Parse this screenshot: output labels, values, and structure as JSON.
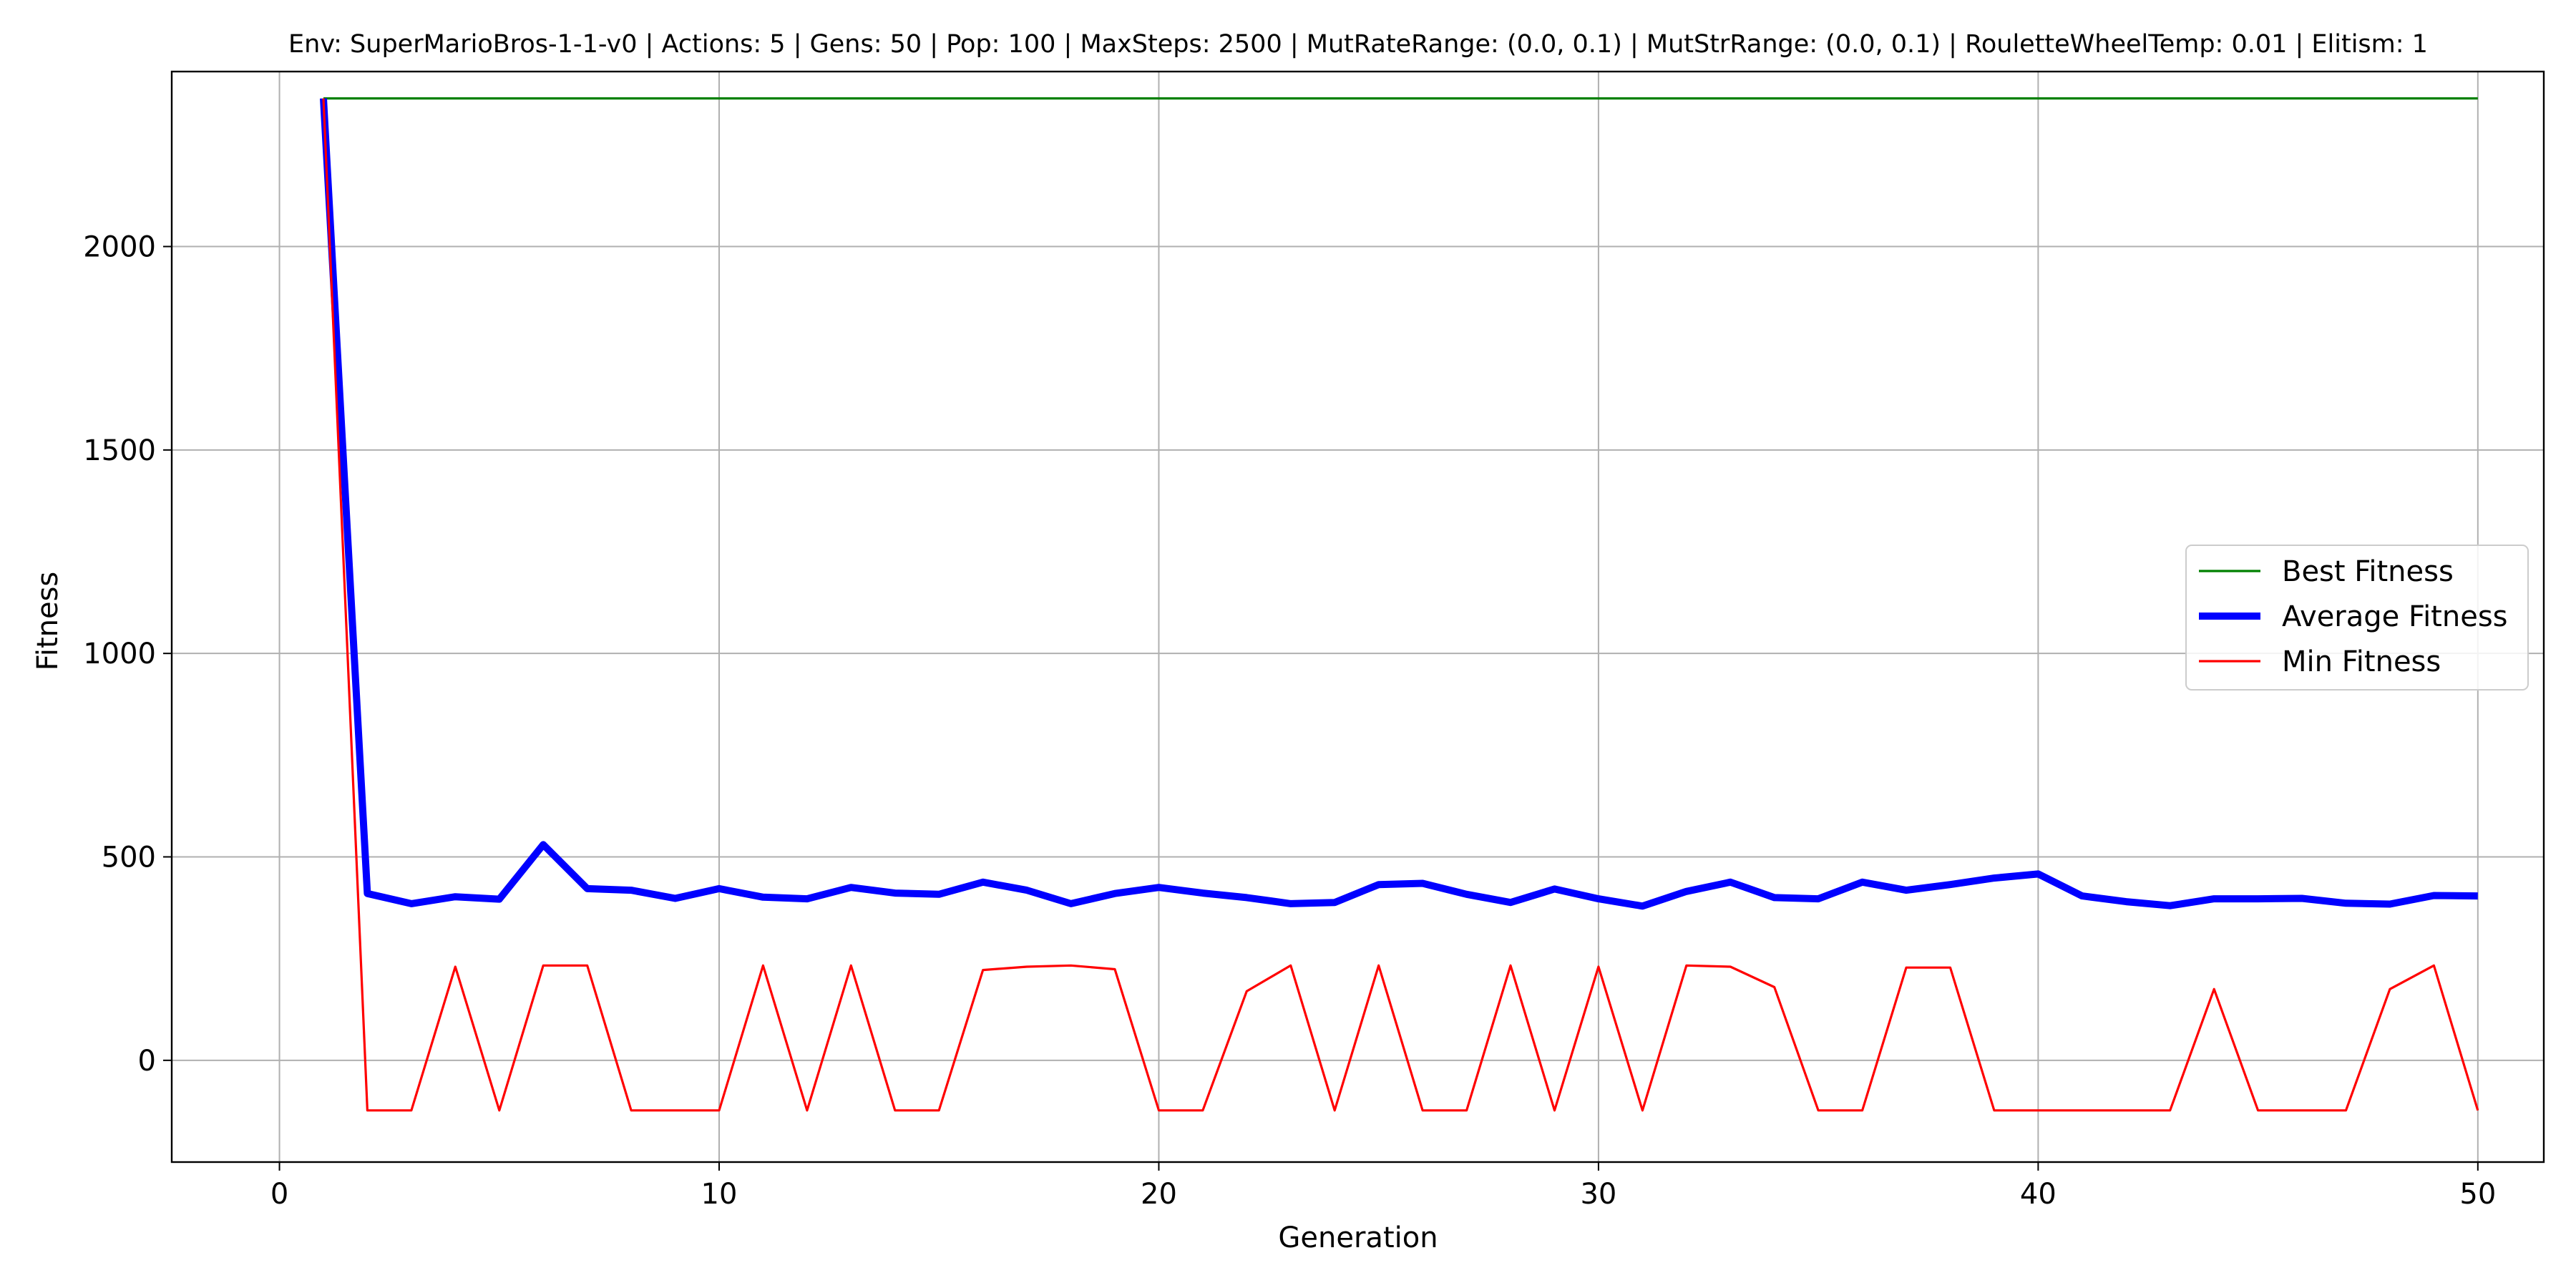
{
  "chart_data": {
    "type": "line",
    "title": "Env: SuperMarioBros-1-1-v0 | Actions: 5 | Gens: 50 | Pop: 100 | MaxSteps: 2500 | MutRateRange: (0.0, 0.1) | MutStrRange: (0.0, 0.1) | RouletteWheelTemp: 0.01 | Elitism: 1",
    "xlabel": "Generation",
    "ylabel": "Fitness",
    "xlim": [
      -2.45,
      51.5
    ],
    "ylim": [
      -250,
      2430
    ],
    "x_ticks": [
      0,
      10,
      20,
      30,
      40,
      50
    ],
    "x_tick_labels": [
      "0",
      "10",
      "20",
      "30",
      "40",
      "50"
    ],
    "y_ticks": [
      0,
      500,
      1000,
      1500,
      2000
    ],
    "y_tick_labels": [
      "0",
      "500",
      "1000",
      "1500",
      "2000"
    ],
    "grid": true,
    "legend_position": "center-right",
    "x": [
      1,
      2,
      3,
      4,
      5,
      6,
      7,
      8,
      9,
      10,
      11,
      12,
      13,
      14,
      15,
      16,
      17,
      18,
      19,
      20,
      21,
      22,
      23,
      24,
      25,
      26,
      27,
      28,
      29,
      30,
      31,
      32,
      33,
      34,
      35,
      36,
      37,
      38,
      39,
      40,
      41,
      42,
      43,
      44,
      45,
      46,
      47,
      48,
      49,
      50
    ],
    "series": [
      {
        "name": "Best Fitness",
        "color": "#008000",
        "line_width": "thin",
        "values": [
          2364,
          2364,
          2364,
          2364,
          2364,
          2364,
          2364,
          2364,
          2364,
          2364,
          2364,
          2364,
          2364,
          2364,
          2364,
          2364,
          2364,
          2364,
          2364,
          2364,
          2364,
          2364,
          2364,
          2364,
          2364,
          2364,
          2364,
          2364,
          2364,
          2364,
          2364,
          2364,
          2364,
          2364,
          2364,
          2364,
          2364,
          2364,
          2364,
          2364,
          2364,
          2364,
          2364,
          2364,
          2364,
          2364,
          2364,
          2364,
          2364,
          2364
        ]
      },
      {
        "name": "Average Fitness",
        "color": "#0000ff",
        "line_width": "thick",
        "values": [
          2364,
          410,
          385,
          402,
          396,
          530,
          422,
          418,
          398,
          422,
          401,
          397,
          425,
          411,
          408,
          438,
          418,
          385,
          410,
          425,
          411,
          400,
          385,
          388,
          432,
          435,
          408,
          388,
          421,
          397,
          379,
          415,
          438,
          400,
          397,
          438,
          418,
          432,
          448,
          458,
          404,
          390,
          380,
          397,
          397,
          398,
          386,
          384,
          405,
          404
        ]
      },
      {
        "name": "Min Fitness",
        "color": "#ff0000",
        "line_width": "thin",
        "values": [
          2364,
          -123,
          -123,
          230,
          -123,
          233,
          233,
          -123,
          -123,
          -123,
          233,
          -123,
          233,
          -123,
          -123,
          222,
          230,
          233,
          224,
          -123,
          -123,
          170,
          233,
          -123,
          233,
          -123,
          -123,
          233,
          -123,
          230,
          -123,
          233,
          230,
          180,
          -123,
          -123,
          228,
          228,
          -123,
          -123,
          -123,
          -123,
          -123,
          175,
          -123,
          -123,
          -123,
          175,
          233,
          -123
        ]
      }
    ]
  }
}
